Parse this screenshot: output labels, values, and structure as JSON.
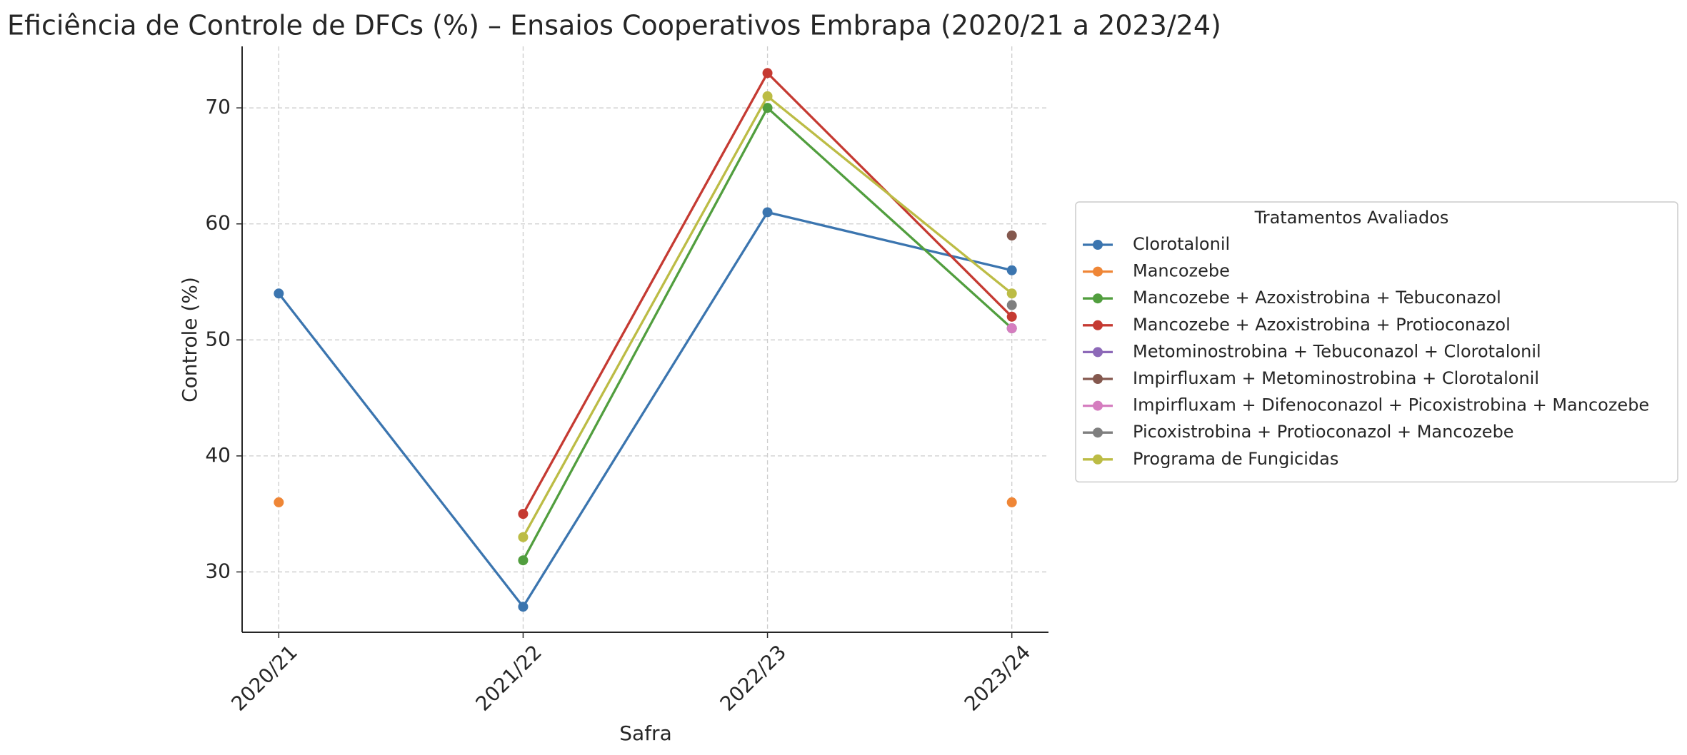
{
  "chart_data": {
    "type": "line",
    "title": "Eficiência de Controle de DFCs (%) – Ensaios Cooperativos Embrapa (2020/21 a 2023/24)",
    "x_label": "Safra",
    "y_label": "Controle (%)",
    "categories": [
      "2020/21",
      "2021/22",
      "2022/23",
      "2023/24"
    ],
    "ylim": [
      24.8,
      75.3
    ],
    "yticks": [
      30,
      40,
      50,
      60,
      70
    ],
    "grid": true,
    "legend_title": "Tratamentos Avaliados",
    "legend_position": "right",
    "series": [
      {
        "name": "Clorotalonil",
        "color": "#3b75af",
        "values": [
          54,
          27,
          61,
          56
        ]
      },
      {
        "name": "Mancozebe",
        "color": "#ef8636",
        "values": [
          36,
          null,
          null,
          36
        ]
      },
      {
        "name": "Mancozebe + Azoxistrobina + Tebuconazol",
        "color": "#519e3e",
        "values": [
          null,
          31,
          70,
          51
        ]
      },
      {
        "name": "Mancozebe + Azoxistrobina + Protioconazol",
        "color": "#c53a32",
        "values": [
          null,
          35,
          73,
          52
        ]
      },
      {
        "name": "Metominostrobina + Tebuconazol + Clorotalonil",
        "color": "#8d69b8",
        "values": [
          null,
          null,
          null,
          51
        ]
      },
      {
        "name": "Impirfluxam + Metominostrobina + Clorotalonil",
        "color": "#84584e",
        "values": [
          null,
          null,
          null,
          59
        ]
      },
      {
        "name": "Impirfluxam + Difenoconazol + Picoxistrobina + Mancozebe",
        "color": "#d57dbf",
        "values": [
          null,
          null,
          null,
          51
        ]
      },
      {
        "name": "Picoxistrobina + Protioconazol + Mancozebe",
        "color": "#7f7f7f",
        "values": [
          null,
          null,
          null,
          53
        ]
      },
      {
        "name": "Programa de Fungicidas",
        "color": "#bcbc45",
        "values": [
          null,
          33,
          71,
          54
        ]
      }
    ]
  }
}
